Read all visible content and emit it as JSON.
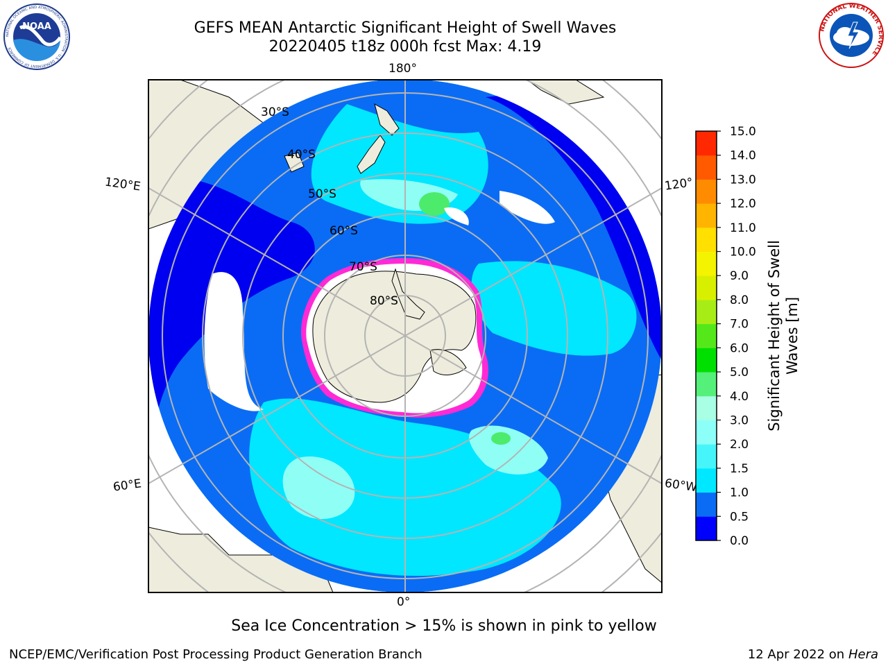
{
  "header": {
    "title_line1": "GEFS MEAN Antarctic Significant Height of Swell Waves",
    "title_line2": "20220405 t18z 000h fcst   Max: 4.19"
  },
  "logos": {
    "left": {
      "icon": "noaa-logo-icon",
      "text": "NOAA",
      "ring_text": "NATIONAL OCEANIC AND ATMOSPHERIC ADMINISTRATION · U.S. DEPARTMENT OF COMMERCE"
    },
    "right": {
      "icon": "nws-logo-icon",
      "ring_text": "NATIONAL WEATHER SERVICE"
    }
  },
  "map": {
    "projection": "south-polar-stereographic",
    "longitude_labels": {
      "top": "180°",
      "bottom": "0°",
      "upper_left": "120°E",
      "upper_right": "120°",
      "lower_left": "60°E",
      "lower_right": "60°W"
    },
    "latitude_labels": [
      "30°S",
      "40°S",
      "50°S",
      "60°S",
      "70°S",
      "80°S"
    ],
    "colors": {
      "land": "#eeecdc",
      "ocean_deep": "#0000f0",
      "ocean_mid": "#0a6cf5",
      "ocean_cyan": "#00e7ff",
      "ocean_light": "#8ffff6",
      "ocean_green": "#4ceb6c",
      "ice_edge": "#ff2ad5",
      "ice_inner": "#ffffff",
      "grid": "#b4b4b4"
    }
  },
  "colorbar": {
    "label_line1": "Significant Height of Swell",
    "label_line2": "Waves [m]",
    "ticks": [
      "0.0",
      "0.5",
      "1.0",
      "1.5",
      "2.0",
      "3.0",
      "4.0",
      "5.0",
      "6.0",
      "7.0",
      "8.0",
      "9.0",
      "10.0",
      "11.0",
      "12.0",
      "13.0",
      "14.0",
      "15.0"
    ],
    "colors": [
      "#0000ff",
      "#0a6cf5",
      "#00e8ff",
      "#46f5fa",
      "#8cfff8",
      "#a8ffe4",
      "#55f07a",
      "#00e000",
      "#54e81a",
      "#a8ec16",
      "#d8f000",
      "#f4f400",
      "#ffe000",
      "#ffb400",
      "#ff8c00",
      "#ff5a00",
      "#ff2800",
      "#ff0000"
    ]
  },
  "footer": {
    "note": "Sea Ice Concentration > 15% is shown in pink to yellow",
    "credit": "NCEP/EMC/Verification Post Processing Product Generation Branch",
    "date": "12 Apr 2022 on ",
    "host": "Hera"
  }
}
